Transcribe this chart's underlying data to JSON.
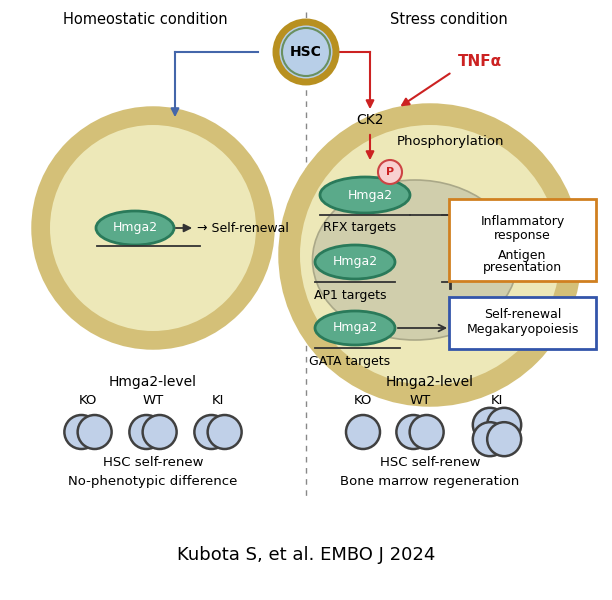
{
  "background_color": "#ffffff",
  "title_text": "Kubota S, et al. EMBO J 2024",
  "title_fontsize": 13,
  "left_condition": "Homeostatic condition",
  "right_condition": "Stress condition",
  "tnf_label": "TNFα",
  "ck2_label": "CK2",
  "phospho_label": "Phosphorylation",
  "hmga2_label": "Hmga2",
  "self_renewal_label": "→ Self-renewal",
  "rfx_label": "RFX targets",
  "ap1_label": "AP1 targets",
  "gata_label": "GATA targets",
  "inflam_line1": "Inflammatory",
  "inflam_line2": "response",
  "antigen_line1": "Antigen",
  "antigen_line2": "presentation",
  "selfrenew_line1": "Self-renewal",
  "selfrenew_line2": "Megakaryopoiesis",
  "hsc_label": "HSC",
  "hmga2_level": "Hmga2-level",
  "ko_label": "KO",
  "wt_label": "WT",
  "ki_label": "KI",
  "hsc_selfrenew": "HSC self-renew",
  "no_pheno": "No-phenotypic difference",
  "bone_marrow": "Bone marrow regeneration",
  "outer_circle_color": "#d4c078",
  "inner_circle_color": "#ede8b8",
  "nucleus_color": "#d0ceac",
  "hmga2_fill": "#5aaa8a",
  "hmga2_edge": "#2a7a5a",
  "hsc_fill": "#b8cfe8",
  "hsc_edge": "#6a9060",
  "hsc_outer": "#b89020",
  "cell_fill": "#c0d0e8",
  "cell_edge": "#404040",
  "orange_box": "#d08020",
  "blue_box": "#3355aa",
  "arrow_blue": "#4466aa",
  "arrow_red": "#cc2222",
  "arrow_dark": "#333333",
  "p_circle_fill": "#f8d0d0",
  "p_circle_edge": "#cc4444",
  "p_text_color": "#cc2222",
  "line_color": "#333333"
}
